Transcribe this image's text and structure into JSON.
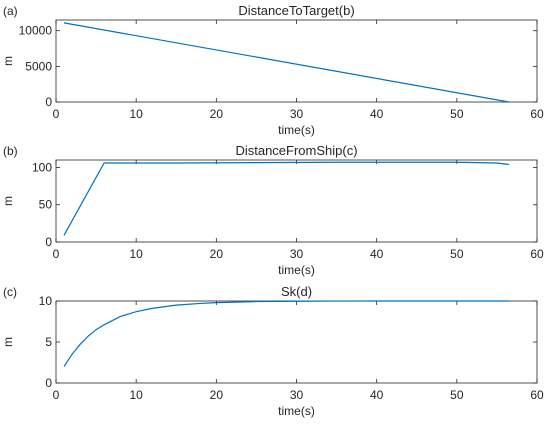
{
  "chart_data": [
    {
      "type": "line",
      "panel_label": "(a)",
      "title": "DistanceToTarget(b)",
      "xlabel": "time(s)",
      "ylabel": "m",
      "xlim": [
        0,
        60
      ],
      "ylim": [
        0,
        11500
      ],
      "xticks": [
        "0",
        "10",
        "20",
        "30",
        "40",
        "50",
        "60"
      ],
      "yticks": [
        "0",
        "5000",
        "10000"
      ],
      "grid": false,
      "color": "#0072BD",
      "series": [
        {
          "x": [
            1,
            56.5
          ],
          "y": [
            11100,
            0
          ]
        }
      ]
    },
    {
      "type": "line",
      "panel_label": "(b)",
      "title": "DistanceFromShip(c)",
      "xlabel": "time(s)",
      "ylabel": "m",
      "xlim": [
        0,
        60
      ],
      "ylim": [
        0,
        110
      ],
      "xticks": [
        "0",
        "10",
        "20",
        "30",
        "40",
        "50",
        "60"
      ],
      "yticks": [
        "0",
        "50",
        "100"
      ],
      "grid": false,
      "color": "#0072BD",
      "series": [
        {
          "x": [
            1,
            6,
            15,
            25,
            35,
            45,
            50,
            55,
            56.5
          ],
          "y": [
            9,
            106,
            106,
            106.5,
            107,
            107,
            107,
            106,
            104
          ]
        }
      ]
    },
    {
      "type": "line",
      "panel_label": "(c)",
      "title": "Sk(d)",
      "xlabel": "time(s)",
      "ylabel": "m",
      "xlim": [
        0,
        60
      ],
      "ylim": [
        0,
        10
      ],
      "xticks": [
        "0",
        "10",
        "20",
        "30",
        "40",
        "50",
        "60"
      ],
      "yticks": [
        "0",
        "5",
        "10"
      ],
      "grid": false,
      "color": "#0072BD",
      "series": [
        {
          "x": [
            1,
            2,
            3,
            4,
            5,
            6,
            8,
            10,
            12,
            15,
            18,
            20,
            25,
            30,
            35,
            40,
            45,
            50,
            56.5
          ],
          "y": [
            2.0,
            3.5,
            4.7,
            5.7,
            6.5,
            7.1,
            8.1,
            8.7,
            9.1,
            9.5,
            9.7,
            9.8,
            9.93,
            9.97,
            9.99,
            10.0,
            10.0,
            10.0,
            10.0
          ]
        }
      ]
    }
  ]
}
